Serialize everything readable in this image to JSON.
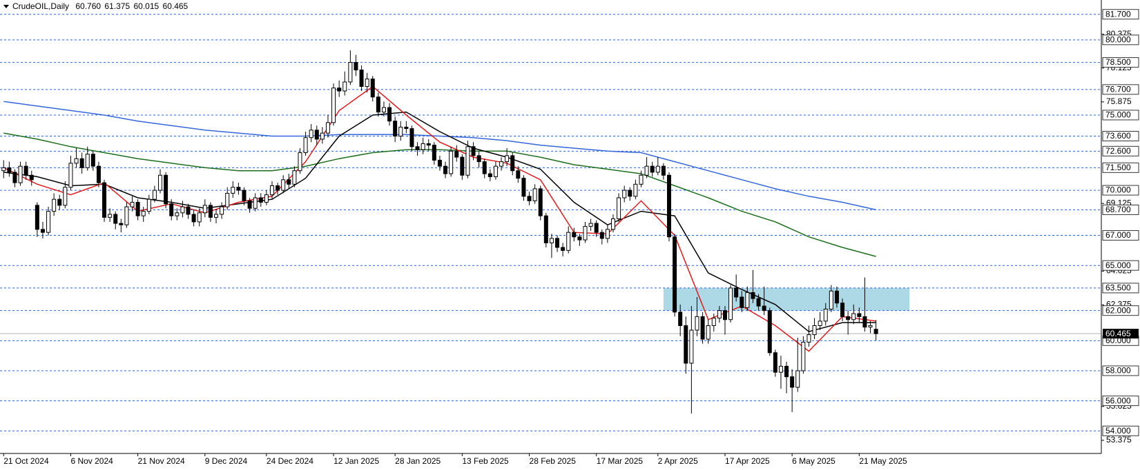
{
  "chart_data": {
    "type": "candlestick",
    "symbol": "CrudeOIL,Daily",
    "header_values": [
      "60.760",
      "61.375",
      "60.015",
      "60.465"
    ],
    "xlim": [
      -0.65,
      196.3
    ],
    "ylim": [
      52.5,
      82.65
    ],
    "xticks": [
      {
        "value": 0,
        "label": "21 Oct 2024"
      },
      {
        "value": 12,
        "label": "6 Nov 2024"
      },
      {
        "value": 24,
        "label": "21 Nov 2024"
      },
      {
        "value": 36,
        "label": "9 Dec 2024"
      },
      {
        "value": 47,
        "label": "24 Dec 2024"
      },
      {
        "value": 59,
        "label": "12 Jan 2025"
      },
      {
        "value": 70,
        "label": "28 Jan 2025"
      },
      {
        "value": 82,
        "label": "13 Feb 2025"
      },
      {
        "value": 94,
        "label": "28 Feb 2025"
      },
      {
        "value": 106,
        "label": "17 Mar 2025"
      },
      {
        "value": 117,
        "label": "2 Apr 2025"
      },
      {
        "value": 129,
        "label": "17 Apr 2025"
      },
      {
        "value": 141,
        "label": "6 May 2025"
      },
      {
        "value": 153,
        "label": "21 May 2025"
      }
    ],
    "yticks": [
      80.375,
      78.125,
      75.875,
      69.125,
      64.625,
      62.375,
      55.625,
      53.375
    ],
    "levels": [
      {
        "value": 81.7,
        "label": "81.700"
      },
      {
        "value": 80,
        "label": "80.000"
      },
      {
        "value": 78.5,
        "label": "78.500"
      },
      {
        "value": 76.7,
        "label": "76.700"
      },
      {
        "value": 75,
        "label": "75.000"
      },
      {
        "value": 73.6,
        "label": "73.600"
      },
      {
        "value": 72.6,
        "label": "72.600"
      },
      {
        "value": 71.5,
        "label": "71.500"
      },
      {
        "value": 70,
        "label": "70.000"
      },
      {
        "value": 68.7,
        "label": "68.700"
      },
      {
        "value": 67,
        "label": "67.000"
      },
      {
        "value": 65,
        "label": "65.000"
      },
      {
        "value": 63.5,
        "label": "63.500"
      },
      {
        "value": 62,
        "label": "62.000"
      },
      {
        "value": 60,
        "label": "60.000"
      },
      {
        "value": 58,
        "label": "58.000"
      },
      {
        "value": 56,
        "label": "56.000"
      },
      {
        "value": 54,
        "label": "54.000"
      }
    ],
    "level_color": "#2f5fcf",
    "last_price": {
      "value": 60.465,
      "label": "60.465"
    },
    "zone": {
      "from": 118,
      "to": 162,
      "low": 62,
      "high": 63.5,
      "color": "#add8e6"
    },
    "up_color": "#ffffff",
    "down_color": "#000000",
    "candles": [
      [
        71.3,
        72.0,
        70.8,
        71.5
      ],
      [
        71.5,
        71.9,
        70.9,
        71.2
      ],
      [
        71.2,
        71.4,
        70.2,
        70.5
      ],
      [
        70.5,
        71.9,
        70.3,
        71.6
      ],
      [
        71.6,
        71.9,
        70.7,
        71.0
      ],
      [
        71.0,
        71.3,
        70.3,
        70.7
      ],
      [
        69.0,
        69.2,
        66.9,
        67.4
      ],
      [
        67.4,
        67.9,
        66.8,
        67.2
      ],
      [
        67.2,
        68.9,
        67.0,
        68.6
      ],
      [
        68.6,
        69.8,
        68.3,
        69.4
      ],
      [
        69.4,
        69.7,
        68.7,
        69.0
      ],
      [
        69.0,
        70.6,
        68.8,
        70.2
      ],
      [
        70.2,
        72.3,
        70.0,
        71.8
      ],
      [
        71.8,
        72.8,
        71.5,
        72.1
      ],
      [
        72.1,
        72.5,
        71.1,
        71.5
      ],
      [
        71.5,
        72.9,
        71.3,
        72.4
      ],
      [
        72.4,
        72.6,
        71.3,
        71.6
      ],
      [
        71.6,
        71.9,
        70.2,
        70.5
      ],
      [
        70.5,
        70.7,
        67.9,
        68.2
      ],
      [
        68.2,
        68.8,
        67.9,
        68.4
      ],
      [
        68.4,
        68.6,
        67.4,
        67.8
      ],
      [
        67.8,
        68.1,
        67.2,
        67.7
      ],
      [
        67.7,
        69.2,
        67.5,
        68.9
      ],
      [
        68.9,
        69.6,
        68.6,
        69.2
      ],
      [
        69.2,
        69.4,
        68.0,
        68.3
      ],
      [
        68.3,
        68.9,
        67.9,
        68.6
      ],
      [
        68.6,
        69.7,
        68.4,
        69.4
      ],
      [
        69.4,
        70.3,
        69.2,
        70.0
      ],
      [
        70.0,
        71.4,
        69.8,
        71.0
      ],
      [
        71.0,
        71.2,
        68.8,
        69.1
      ],
      [
        69.1,
        69.4,
        68.0,
        68.3
      ],
      [
        68.3,
        68.8,
        68.0,
        68.5
      ],
      [
        68.5,
        69.3,
        68.2,
        68.9
      ],
      [
        68.9,
        69.1,
        68.1,
        68.4
      ],
      [
        68.4,
        68.7,
        67.6,
        67.9
      ],
      [
        67.9,
        68.8,
        67.6,
        68.5
      ],
      [
        68.5,
        69.4,
        68.2,
        69.0
      ],
      [
        69.0,
        69.2,
        67.9,
        68.2
      ],
      [
        68.2,
        68.7,
        67.8,
        68.4
      ],
      [
        68.4,
        69.2,
        68.1,
        68.9
      ],
      [
        68.9,
        70.2,
        68.7,
        69.8
      ],
      [
        69.8,
        70.6,
        69.5,
        70.2
      ],
      [
        70.2,
        70.5,
        69.7,
        70.0
      ],
      [
        70.0,
        70.2,
        69.0,
        69.3
      ],
      [
        69.3,
        69.5,
        68.5,
        68.8
      ],
      [
        68.8,
        69.8,
        68.6,
        69.5
      ],
      [
        69.5,
        69.8,
        68.9,
        69.2
      ],
      [
        69.2,
        70.0,
        69.0,
        69.7
      ],
      [
        69.7,
        70.6,
        69.4,
        70.3
      ],
      [
        70.3,
        70.5,
        69.7,
        70.0
      ],
      [
        70.0,
        71.0,
        69.8,
        70.7
      ],
      [
        70.7,
        71.1,
        70.1,
        70.4
      ],
      [
        70.4,
        71.6,
        70.2,
        71.3
      ],
      [
        71.3,
        72.8,
        71.1,
        72.5
      ],
      [
        72.5,
        73.9,
        72.3,
        73.5
      ],
      [
        73.5,
        74.4,
        73.2,
        74.0
      ],
      [
        74.0,
        74.3,
        73.0,
        73.4
      ],
      [
        73.4,
        74.2,
        73.1,
        73.8
      ],
      [
        73.8,
        75.0,
        73.5,
        74.5
      ],
      [
        74.5,
        77.1,
        74.3,
        76.8
      ],
      [
        76.8,
        77.3,
        76.2,
        76.6
      ],
      [
        76.6,
        77.9,
        76.3,
        77.2
      ],
      [
        77.2,
        79.3,
        77.0,
        78.5
      ],
      [
        78.5,
        79.0,
        77.6,
        78.0
      ],
      [
        78.0,
        78.3,
        76.6,
        76.9
      ],
      [
        76.9,
        77.8,
        76.5,
        77.4
      ],
      [
        77.4,
        77.6,
        75.9,
        76.2
      ],
      [
        76.2,
        76.5,
        74.9,
        75.2
      ],
      [
        75.2,
        75.9,
        74.9,
        75.5
      ],
      [
        75.5,
        75.8,
        74.3,
        74.6
      ],
      [
        74.6,
        74.9,
        73.2,
        73.6
      ],
      [
        73.6,
        74.6,
        73.3,
        74.2
      ],
      [
        74.2,
        74.6,
        73.8,
        74.1
      ],
      [
        74.1,
        74.3,
        72.6,
        72.9
      ],
      [
        72.9,
        73.2,
        72.3,
        72.7
      ],
      [
        72.7,
        73.5,
        72.4,
        73.1
      ],
      [
        73.1,
        73.4,
        72.6,
        73.0
      ],
      [
        73.0,
        73.2,
        71.7,
        72.0
      ],
      [
        72.0,
        72.3,
        71.3,
        71.6
      ],
      [
        71.6,
        71.9,
        70.8,
        71.1
      ],
      [
        71.1,
        72.9,
        70.9,
        72.6
      ],
      [
        72.6,
        73.0,
        71.9,
        72.2
      ],
      [
        72.2,
        72.4,
        70.7,
        71.0
      ],
      [
        71.0,
        73.3,
        70.8,
        72.9
      ],
      [
        72.9,
        73.2,
        72.0,
        72.3
      ],
      [
        72.3,
        72.6,
        71.5,
        71.9
      ],
      [
        71.9,
        72.1,
        70.8,
        71.1
      ],
      [
        71.1,
        71.4,
        70.6,
        70.9
      ],
      [
        70.9,
        71.9,
        70.7,
        71.6
      ],
      [
        71.6,
        72.2,
        71.3,
        71.9
      ],
      [
        71.9,
        72.8,
        71.6,
        72.3
      ],
      [
        72.3,
        72.5,
        71.0,
        71.3
      ],
      [
        71.3,
        71.6,
        70.5,
        70.8
      ],
      [
        70.8,
        71.0,
        69.3,
        69.6
      ],
      [
        69.6,
        69.9,
        69.0,
        69.3
      ],
      [
        69.3,
        70.4,
        69.1,
        70.1
      ],
      [
        70.1,
        70.3,
        68.0,
        68.3
      ],
      [
        68.3,
        68.5,
        66.2,
        66.5
      ],
      [
        66.5,
        67.1,
        65.5,
        66.8
      ],
      [
        66.8,
        67.0,
        65.9,
        66.2
      ],
      [
        66.2,
        66.5,
        65.6,
        66.0
      ],
      [
        66.0,
        67.6,
        65.8,
        67.2
      ],
      [
        67.2,
        67.5,
        66.6,
        66.9
      ],
      [
        66.9,
        67.1,
        66.3,
        66.7
      ],
      [
        66.7,
        67.9,
        66.5,
        67.6
      ],
      [
        67.6,
        68.1,
        67.3,
        67.8
      ],
      [
        67.8,
        68.0,
        66.9,
        67.2
      ],
      [
        67.2,
        67.4,
        66.4,
        66.8
      ],
      [
        66.8,
        67.7,
        66.5,
        67.4
      ],
      [
        67.4,
        68.4,
        67.2,
        68.1
      ],
      [
        68.1,
        69.8,
        67.9,
        69.5
      ],
      [
        69.5,
        70.3,
        69.2,
        70.0
      ],
      [
        70.0,
        70.2,
        69.3,
        69.6
      ],
      [
        69.6,
        70.7,
        69.4,
        70.4
      ],
      [
        70.4,
        71.3,
        70.2,
        71.0
      ],
      [
        71.0,
        72.2,
        70.8,
        71.6
      ],
      [
        71.6,
        71.9,
        70.9,
        71.2
      ],
      [
        71.2,
        72.2,
        71.0,
        71.6
      ],
      [
        71.6,
        71.8,
        70.7,
        71.0
      ],
      [
        71.0,
        71.2,
        66.6,
        66.9
      ],
      [
        66.9,
        67.1,
        61.6,
        61.9
      ],
      [
        61.9,
        62.4,
        60.3,
        61.0
      ],
      [
        61.0,
        61.6,
        57.8,
        58.5
      ],
      [
        58.5,
        62.3,
        55.15,
        60.7
      ],
      [
        60.7,
        62.9,
        60.3,
        61.6
      ],
      [
        61.6,
        61.9,
        59.8,
        60.1
      ],
      [
        60.1,
        61.4,
        59.8,
        61.0
      ],
      [
        61.0,
        61.8,
        60.6,
        61.5
      ],
      [
        61.5,
        62.3,
        61.2,
        62.0
      ],
      [
        62.0,
        62.3,
        60.4,
        61.4
      ],
      [
        61.4,
        63.7,
        61.2,
        63.5
      ],
      [
        63.5,
        64.4,
        62.6,
        62.9
      ],
      [
        62.9,
        63.3,
        61.9,
        62.2
      ],
      [
        62.2,
        63.6,
        62.0,
        63.2
      ],
      [
        63.2,
        64.7,
        62.5,
        62.8
      ],
      [
        62.8,
        63.1,
        62.0,
        62.3
      ],
      [
        62.3,
        63.6,
        61.7,
        62.0
      ],
      [
        62.0,
        62.2,
        59.0,
        59.2
      ],
      [
        59.2,
        59.4,
        57.6,
        57.9
      ],
      [
        57.9,
        59.0,
        56.8,
        58.3
      ],
      [
        58.3,
        58.6,
        56.5,
        57.6
      ],
      [
        57.6,
        58.1,
        55.25,
        56.9
      ],
      [
        56.9,
        60.2,
        56.6,
        58.0
      ],
      [
        58.0,
        60.3,
        57.8,
        59.9
      ],
      [
        59.9,
        61.0,
        59.6,
        60.4
      ],
      [
        60.4,
        61.5,
        60.1,
        61.0
      ],
      [
        61.0,
        61.9,
        60.7,
        61.3
      ],
      [
        61.3,
        62.5,
        61.0,
        62.1
      ],
      [
        62.1,
        63.7,
        61.9,
        63.3
      ],
      [
        63.3,
        63.6,
        62.2,
        62.5
      ],
      [
        62.5,
        62.8,
        61.3,
        61.6
      ],
      [
        61.6,
        62.0,
        60.4,
        61.4
      ],
      [
        61.4,
        62.4,
        61.1,
        61.8
      ],
      [
        61.8,
        62.2,
        61.2,
        61.6
      ],
      [
        61.6,
        64.2,
        60.6,
        60.9
      ],
      [
        60.9,
        61.3,
        60.5,
        61.0
      ],
      [
        60.76,
        61.375,
        60.015,
        60.465
      ]
    ],
    "ma_x": [
      0,
      6,
      12,
      18,
      24,
      30,
      36,
      42,
      48,
      54,
      60,
      66,
      72,
      78,
      84,
      90,
      96,
      102,
      108,
      114,
      120,
      126,
      132,
      138,
      144,
      150,
      156
    ],
    "series": [
      {
        "color": "#3366dd",
        "values": [
          75.9,
          75.6,
          75.3,
          75.0,
          74.6,
          74.3,
          74.0,
          73.8,
          73.6,
          73.6,
          73.7,
          73.7,
          73.7,
          73.6,
          73.5,
          73.3,
          73.0,
          72.8,
          72.6,
          72.5,
          71.9,
          71.3,
          70.7,
          70.1,
          69.6,
          69.2,
          68.7
        ]
      },
      {
        "color": "#1a6e1a",
        "values": [
          73.8,
          73.4,
          72.9,
          72.5,
          72.1,
          71.8,
          71.5,
          71.3,
          71.3,
          71.6,
          72.1,
          72.5,
          72.7,
          72.7,
          72.6,
          72.6,
          72.2,
          71.7,
          71.4,
          71.1,
          70.3,
          69.5,
          68.6,
          67.9,
          66.9,
          66.2,
          65.6
        ]
      },
      {
        "color": "#000000",
        "values": [
          71.2,
          70.9,
          70.3,
          70.4,
          69.5,
          69.2,
          68.8,
          69.1,
          69.4,
          70.8,
          73.6,
          75.0,
          75.2,
          73.9,
          72.8,
          72.2,
          71.4,
          69.2,
          67.7,
          68.6,
          68.3,
          64.5,
          63.4,
          62.4,
          60.6,
          61.2,
          61.2
        ]
      },
      {
        "color": "#e31a1c",
        "values": [
          71.5,
          70.4,
          69.7,
          70.5,
          68.6,
          69.1,
          68.5,
          69.2,
          69.6,
          71.9,
          75.3,
          76.9,
          75.0,
          73.2,
          72.2,
          71.8,
          70.7,
          67.2,
          67.1,
          69.3,
          67.0,
          61.4,
          62.3,
          61.0,
          59.3,
          61.6,
          61.3
        ]
      }
    ]
  }
}
